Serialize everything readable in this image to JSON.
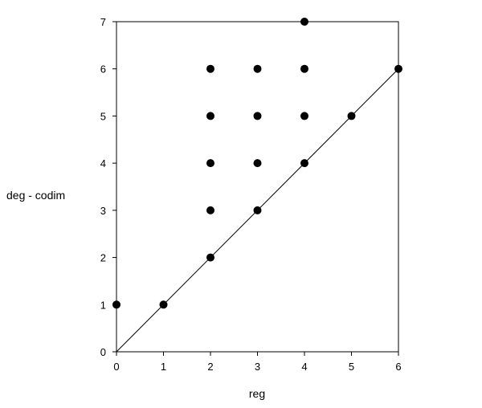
{
  "chart_data": {
    "type": "scatter",
    "title": "",
    "xlabel": "reg",
    "ylabel": "deg - codim",
    "xlim": [
      0,
      6
    ],
    "ylim": [
      0,
      7
    ],
    "x_ticks": [
      "0",
      "1",
      "2",
      "3",
      "4",
      "5",
      "6"
    ],
    "y_ticks": [
      "0",
      "1",
      "2",
      "3",
      "4",
      "5",
      "6",
      "7"
    ],
    "grid": false,
    "legend": "none",
    "points": [
      {
        "x": 0,
        "y": 1
      },
      {
        "x": 1,
        "y": 1
      },
      {
        "x": 2,
        "y": 2
      },
      {
        "x": 2,
        "y": 3
      },
      {
        "x": 2,
        "y": 4
      },
      {
        "x": 2,
        "y": 5
      },
      {
        "x": 2,
        "y": 6
      },
      {
        "x": 3,
        "y": 3
      },
      {
        "x": 3,
        "y": 4
      },
      {
        "x": 3,
        "y": 5
      },
      {
        "x": 3,
        "y": 6
      },
      {
        "x": 4,
        "y": 4
      },
      {
        "x": 4,
        "y": 5
      },
      {
        "x": 4,
        "y": 6
      },
      {
        "x": 4,
        "y": 7
      },
      {
        "x": 5,
        "y": 5
      },
      {
        "x": 6,
        "y": 6
      }
    ],
    "reference_line": {
      "from": [
        0,
        0
      ],
      "to": [
        6,
        6
      ]
    },
    "marker_color": "#000000"
  }
}
